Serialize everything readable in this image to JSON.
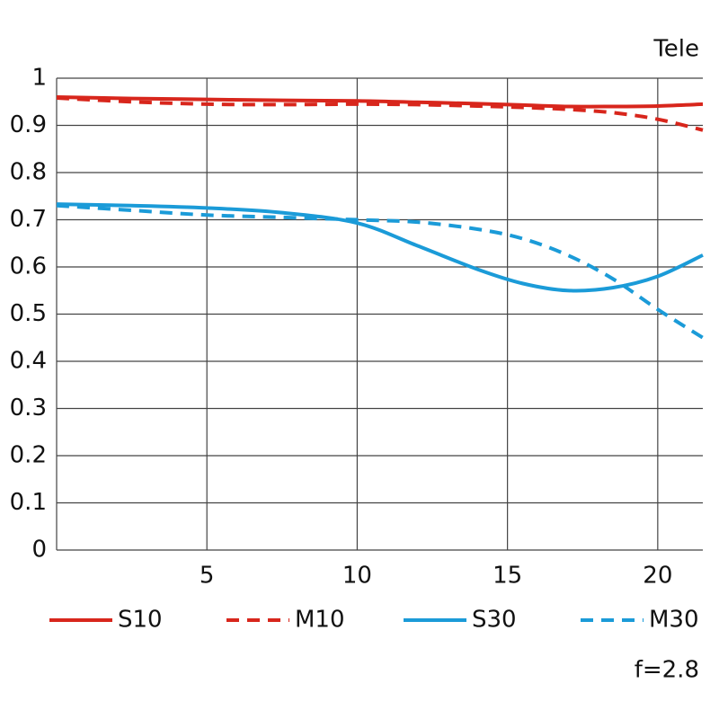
{
  "chart_data": {
    "type": "line",
    "title": "Tele",
    "annotation": "f=2.8",
    "x": [
      0,
      2.5,
      5,
      7.5,
      10,
      12,
      14,
      15.5,
      17,
      18.5,
      20,
      21.5
    ],
    "series": [
      {
        "name": "S10",
        "color": "#d8261c",
        "dashed": false,
        "values": [
          0.96,
          0.957,
          0.955,
          0.953,
          0.952,
          0.949,
          0.946,
          0.943,
          0.94,
          0.94,
          0.941,
          0.945
        ]
      },
      {
        "name": "M10",
        "color": "#d8261c",
        "dashed": true,
        "values": [
          0.958,
          0.95,
          0.945,
          0.944,
          0.945,
          0.944,
          0.941,
          0.938,
          0.934,
          0.927,
          0.913,
          0.89
        ]
      },
      {
        "name": "S30",
        "color": "#1b9bd8",
        "dashed": false,
        "values": [
          0.733,
          0.73,
          0.725,
          0.715,
          0.693,
          0.645,
          0.595,
          0.565,
          0.55,
          0.556,
          0.58,
          0.625
        ]
      },
      {
        "name": "M30",
        "color": "#1b9bd8",
        "dashed": true,
        "values": [
          0.73,
          0.72,
          0.71,
          0.705,
          0.7,
          0.695,
          0.68,
          0.66,
          0.625,
          0.575,
          0.51,
          0.45
        ]
      }
    ],
    "xlim": [
      0,
      21.5
    ],
    "ylim": [
      0,
      1
    ],
    "xticks": [
      5,
      10,
      15,
      20
    ],
    "yticks": [
      0,
      0.1,
      0.2,
      0.3,
      0.4,
      0.5,
      0.6,
      0.7,
      0.8,
      0.9,
      1
    ],
    "grid": true
  }
}
